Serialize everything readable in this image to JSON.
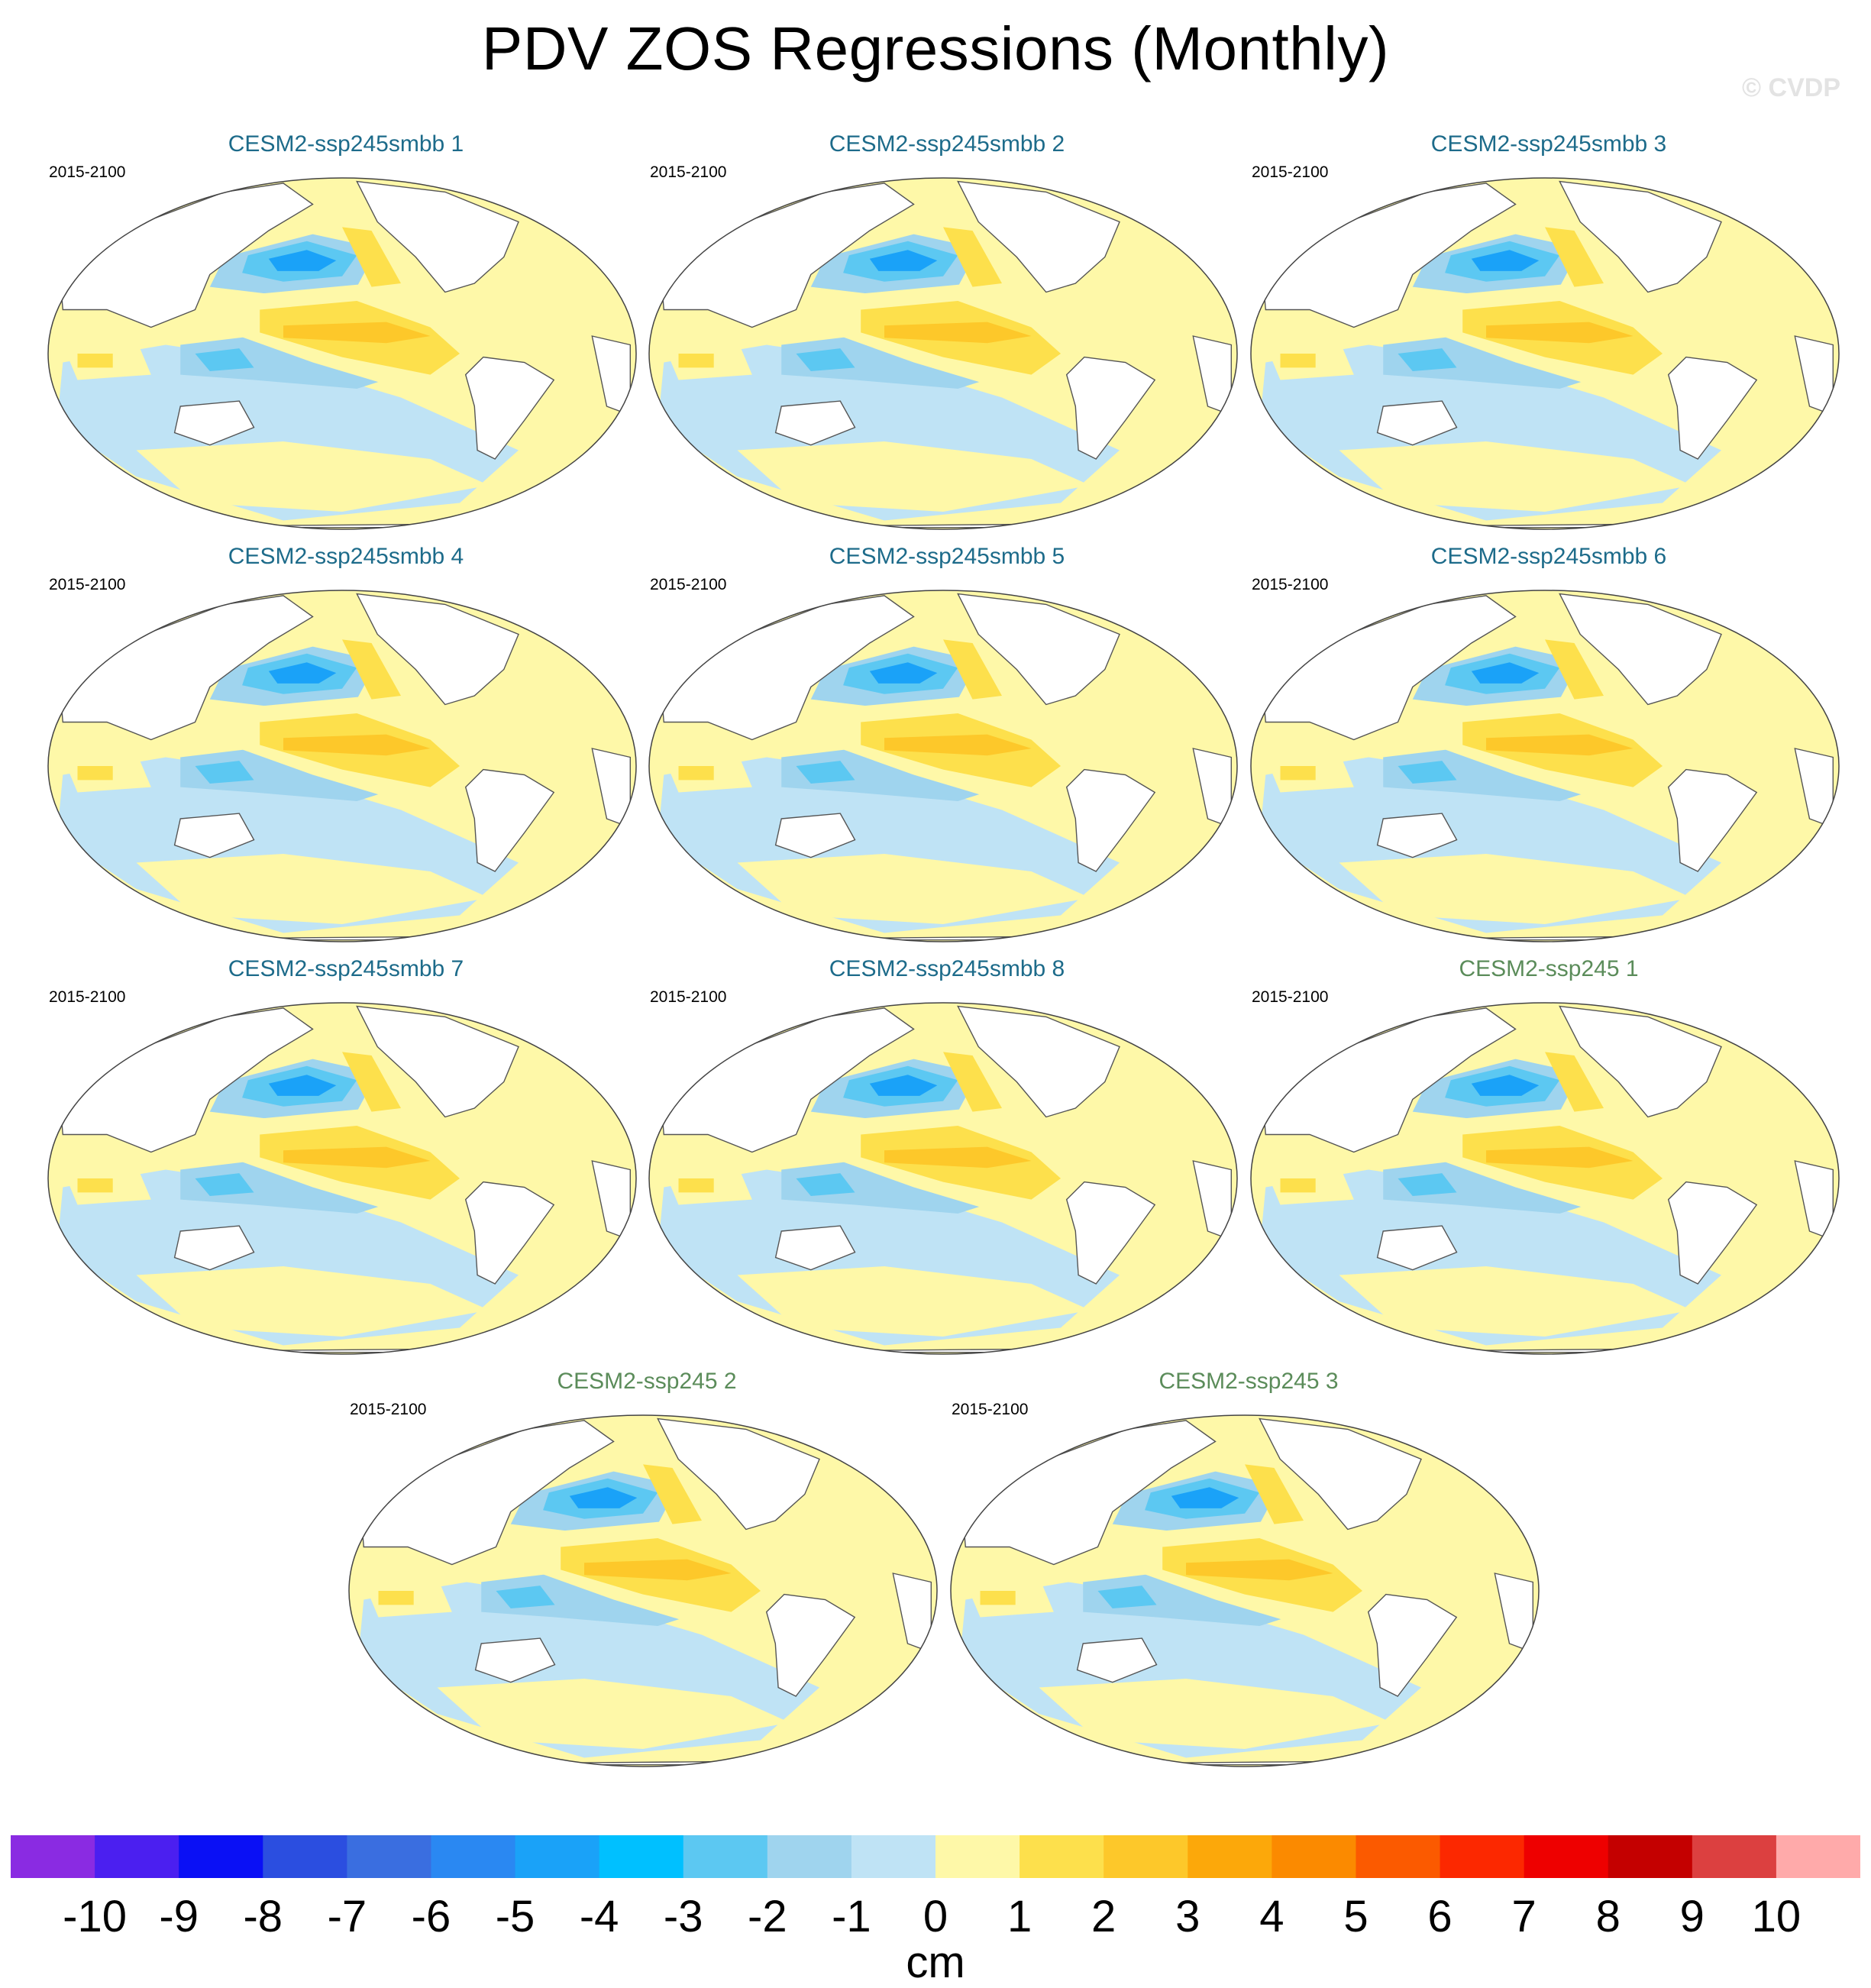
{
  "figure": {
    "title": "PDV ZOS Regressions (Monthly)",
    "watermark": "© CVDP",
    "units": "cm"
  },
  "panels": [
    {
      "title": "CESM2-ssp245smbb 1",
      "years": "2015-2100",
      "group": "smbb"
    },
    {
      "title": "CESM2-ssp245smbb 2",
      "years": "2015-2100",
      "group": "smbb"
    },
    {
      "title": "CESM2-ssp245smbb 3",
      "years": "2015-2100",
      "group": "smbb"
    },
    {
      "title": "CESM2-ssp245smbb 4",
      "years": "2015-2100",
      "group": "smbb"
    },
    {
      "title": "CESM2-ssp245smbb 5",
      "years": "2015-2100",
      "group": "smbb"
    },
    {
      "title": "CESM2-ssp245smbb 6",
      "years": "2015-2100",
      "group": "smbb"
    },
    {
      "title": "CESM2-ssp245smbb 7",
      "years": "2015-2100",
      "group": "smbb"
    },
    {
      "title": "CESM2-ssp245smbb 8",
      "years": "2015-2100",
      "group": "smbb"
    },
    {
      "title": "CESM2-ssp245 1",
      "years": "2015-2100",
      "group": "ssp245"
    },
    {
      "title": "CESM2-ssp245 2",
      "years": "2015-2100",
      "group": "ssp245"
    },
    {
      "title": "CESM2-ssp245 3",
      "years": "2015-2100",
      "group": "ssp245"
    }
  ],
  "colors": {
    "smbb_title": "#1d6b8a",
    "ssp245_title": "#5b8c5a",
    "land": "#ffffff",
    "coast": "#555555"
  },
  "colorbar": {
    "labels": [
      "-10",
      "-9",
      "-8",
      "-7",
      "-6",
      "-5",
      "-4",
      "-3",
      "-2",
      "-1",
      "0",
      "1",
      "2",
      "3",
      "4",
      "5",
      "6",
      "7",
      "8",
      "9",
      "10"
    ],
    "colors": [
      "#8a2be2",
      "#4b1ff0",
      "#0a10f5",
      "#2b4ee0",
      "#3a6ee0",
      "#2a88f2",
      "#1aa2f8",
      "#00c0ff",
      "#5cc8f2",
      "#9fd4ee",
      "#bfe3f5",
      "#fef8a8",
      "#fde04c",
      "#fdc82a",
      "#fca80a",
      "#fb8a00",
      "#fb5a00",
      "#fc2800",
      "#ee0000",
      "#c40000",
      "#dc4040",
      "#ffaaaa"
    ]
  }
}
